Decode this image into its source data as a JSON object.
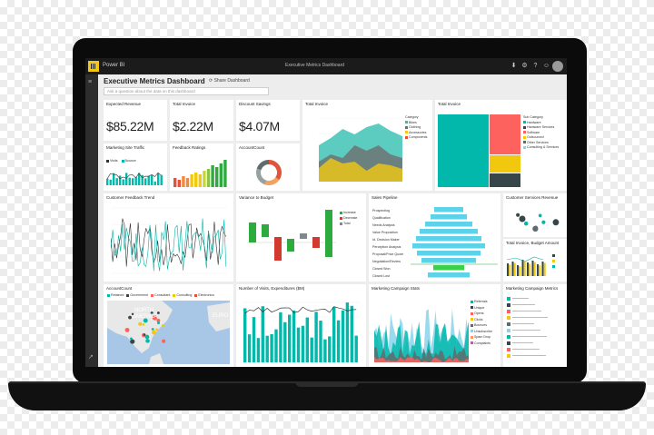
{
  "app": {
    "name": "Power BI",
    "window_title": "Executive Metrics Dashboard"
  },
  "dashboard": {
    "title": "Executive Metrics Dashboard",
    "share_label": "Share Dashboard",
    "qa_placeholder": "Ask a question about the data on this dashboard"
  },
  "tiles": {
    "expected_revenue": {
      "title": "Expected Revenue",
      "value": "$85.22M"
    },
    "total_invoice_card": {
      "title": "Total Invoice",
      "value": "$2.22M"
    },
    "discount_savings": {
      "title": "Discount Savings",
      "value": "$4.07M"
    },
    "total_invoice_area": {
      "title": "Total Invoice",
      "legend_title": "Category",
      "legend": [
        "Bikes",
        "Clothing",
        "Accessories",
        "Components"
      ],
      "colors": [
        "#34bfb0",
        "#6e6e6e",
        "#f2c811",
        "#e0543c"
      ]
    },
    "total_invoice_tree": {
      "title": "Total Invoice",
      "legend_title": "Sub Category",
      "legend": [
        "Hardware",
        "Hardware Services",
        "Software",
        "Outsourced",
        "Other Services",
        "Consulting & Services"
      ],
      "colors": [
        "#01b8aa",
        "#374649",
        "#fd625e",
        "#f2c80f",
        "#5f6b6d",
        "#8ad4eb"
      ]
    },
    "marketing_traffic": {
      "title": "Marketing Site Traffic",
      "legend": [
        "Visits",
        "Bounce"
      ]
    },
    "feedback_ratings": {
      "title": "Feedback Ratings"
    },
    "account_count_donut": {
      "title": "AccountCount"
    },
    "customer_feedback": {
      "title": "Customer Feedback Trend"
    },
    "variance_budget": {
      "title": "Variance to Budget",
      "legend": [
        "Increase",
        "Decrease",
        "Total"
      ],
      "colors": [
        "#2dab3e",
        "#d23a2f",
        "#7d8a8c"
      ]
    },
    "sales_pipeline": {
      "title": "Sales Pipeline",
      "stages": [
        "Prospecting",
        "Qualification",
        "Needs Analysis",
        "Value Proposition",
        "Id. Decision Maker",
        "Perception Analysis",
        "Proposal/Price Quote",
        "Negotiation/Review",
        "Closed Won",
        "Closed Lost"
      ]
    },
    "customer_services": {
      "title": "Customer Services Revenue"
    },
    "total_invoice_budget": {
      "title": "Total Invoice, Budget Amount"
    },
    "account_count_map": {
      "title": "AccountCount",
      "legend": [
        "Retained",
        "Government",
        "Consultant",
        "Consulting",
        "Electronics"
      ],
      "map_labels": [
        "NORTH",
        "AMERICA",
        "EURO"
      ]
    },
    "visits_spend": {
      "title": "Number of Visits, Expenditures ($M)"
    },
    "marketing_stats": {
      "title": "Marketing Campaign Stats",
      "legend": [
        "Referrals",
        "Unique",
        "Opens",
        "Clicks",
        "Bounces",
        "Unsubscribe",
        "Spam Drop",
        "Complaints"
      ]
    },
    "campaign_metrics": {
      "title": "Marketing Campaign Metrics"
    }
  }
}
